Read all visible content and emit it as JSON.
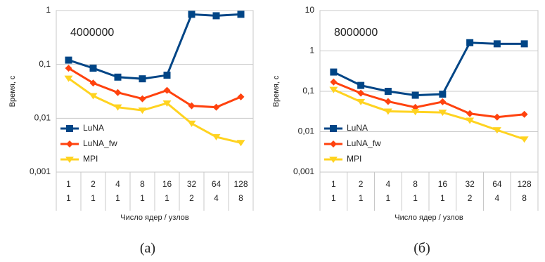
{
  "chart_data": [
    {
      "type": "line",
      "annotation": "4000000",
      "caption": "(а)",
      "x_label": "Число ядер / узлов",
      "y_label": "Время, с",
      "categories": [
        [
          "1",
          "1"
        ],
        [
          "2",
          "1"
        ],
        [
          "4",
          "1"
        ],
        [
          "8",
          "1"
        ],
        [
          "16",
          "1"
        ],
        [
          "32",
          "2"
        ],
        [
          "64",
          "4"
        ],
        [
          "128",
          "8"
        ]
      ],
      "log_y": true,
      "grid": true,
      "legend": "lower left",
      "ylim": [
        0.001,
        1
      ],
      "yticks": [
        {
          "value": 0.001,
          "label": "0,001"
        },
        {
          "value": 0.01,
          "label": "0,01"
        },
        {
          "value": 0.1,
          "label": "0,1"
        },
        1
      ],
      "series": [
        {
          "name": "LuNA",
          "color": "#004586",
          "marker": "square",
          "values": [
            0.12,
            0.085,
            0.058,
            0.054,
            0.063,
            0.85,
            0.8,
            0.85
          ]
        },
        {
          "name": "LuNA_fw",
          "color": "#ff420e",
          "marker": "diamond",
          "values": [
            0.085,
            0.045,
            0.03,
            0.023,
            0.033,
            0.017,
            0.016,
            0.025
          ]
        },
        {
          "name": "MPI",
          "color": "#ffd320",
          "marker": "triangle",
          "values": [
            0.055,
            0.026,
            0.016,
            0.014,
            0.019,
            0.008,
            0.0045,
            0.0035
          ]
        }
      ]
    },
    {
      "type": "line",
      "annotation": "8000000",
      "caption": "(б)",
      "x_label": "Число ядер / узлов",
      "y_label": "Время, с",
      "categories": [
        [
          "1",
          "1"
        ],
        [
          "2",
          "1"
        ],
        [
          "4",
          "1"
        ],
        [
          "8",
          "1"
        ],
        [
          "16",
          "1"
        ],
        [
          "32",
          "2"
        ],
        [
          "64",
          "4"
        ],
        [
          "128",
          "8"
        ]
      ],
      "log_y": true,
      "grid": true,
      "legend": "lower left",
      "ylim": [
        0.001,
        10
      ],
      "yticks": [
        {
          "value": 0.001,
          "label": "0,001"
        },
        {
          "value": 0.01,
          "label": "0,01"
        },
        {
          "value": 0.1,
          "label": "0,1"
        },
        1,
        10
      ],
      "series": [
        {
          "name": "LuNA",
          "color": "#004586",
          "marker": "square",
          "values": [
            0.3,
            0.14,
            0.1,
            0.08,
            0.085,
            1.6,
            1.5,
            1.5
          ]
        },
        {
          "name": "LuNA_fw",
          "color": "#ff420e",
          "marker": "diamond",
          "values": [
            0.17,
            0.09,
            0.056,
            0.04,
            0.055,
            0.028,
            0.023,
            0.027
          ]
        },
        {
          "name": "MPI",
          "color": "#ffd320",
          "marker": "triangle",
          "values": [
            0.11,
            0.055,
            0.032,
            0.031,
            0.03,
            0.019,
            0.011,
            0.0065
          ]
        }
      ]
    }
  ]
}
